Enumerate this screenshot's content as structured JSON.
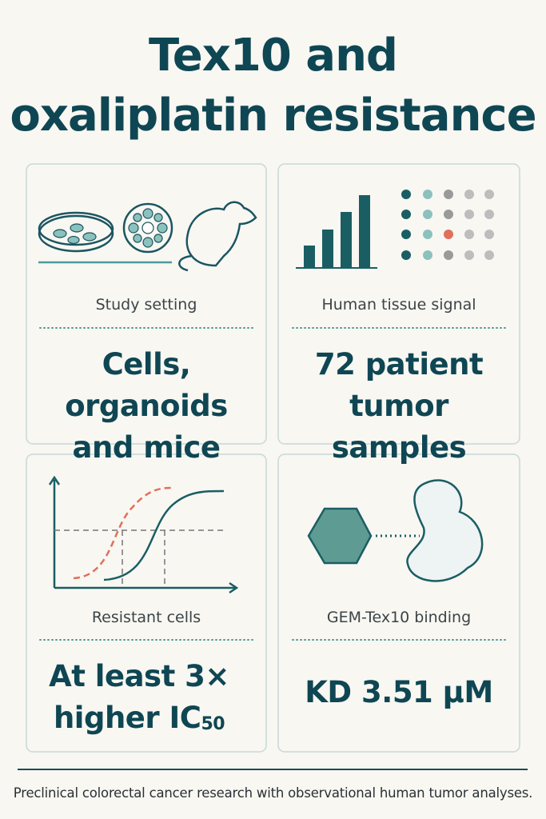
{
  "header": {
    "title": [
      "Tex10 and",
      "oxaliplatin resistance"
    ]
  },
  "cards": [
    {
      "label": "Study setting",
      "value_lines": [
        "Cells, organoids",
        "and mice"
      ]
    },
    {
      "label": "Human tissue signal",
      "value_lines": [
        "72 patient",
        "tumor samples"
      ]
    },
    {
      "label": "Resistant cells",
      "value_lines": [
        "At least 3×",
        "higher IC"
      ],
      "value_subscript": "50"
    },
    {
      "label": "GEM-Tex10 binding",
      "value_lines": [
        "KD 3.51 µM"
      ]
    }
  ],
  "footer": "Preclinical colorectal cancer research with observational human tumor analyses."
}
